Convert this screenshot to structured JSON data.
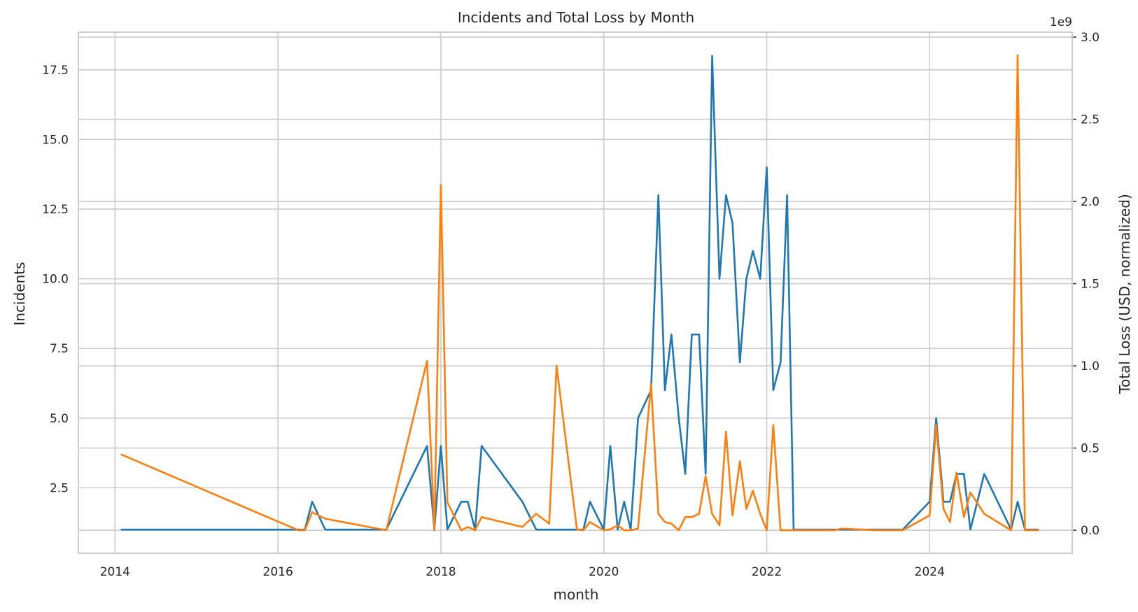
{
  "chart_data": {
    "type": "line",
    "title": "Incidents and Total Loss by Month",
    "xlabel": "month",
    "ylabel": "Incidents",
    "ylabel_right": "Total Loss (USD, normalized)",
    "right_offset_text": "1e9",
    "x_ticks": [
      "2014",
      "2016",
      "2018",
      "2020",
      "2022",
      "2024"
    ],
    "y_ticks_left": [
      "2.5",
      "5.0",
      "7.5",
      "10.0",
      "12.5",
      "15.0",
      "17.5"
    ],
    "y_ticks_right": [
      "0.0",
      "0.5",
      "1.0",
      "1.5",
      "2.0",
      "2.5",
      "3.0"
    ],
    "xlim": [
      2013.55,
      2025.75
    ],
    "ylim_left": [
      0.15,
      18.85
    ],
    "ylim_right": [
      -0.14,
      3.03
    ],
    "grid": true,
    "colors": {
      "incidents": "#1f77b4",
      "loss": "#ff7f0e",
      "grid": "#cccccc",
      "spine": "#cccccc",
      "text": "#262626"
    },
    "x": [
      2014.08,
      2016.25,
      2016.33,
      2016.42,
      2016.58,
      2017.33,
      2017.83,
      2017.92,
      2018.0,
      2018.08,
      2018.25,
      2018.33,
      2018.42,
      2018.5,
      2019.0,
      2019.17,
      2019.33,
      2019.42,
      2019.67,
      2019.75,
      2019.83,
      2020.0,
      2020.08,
      2020.17,
      2020.25,
      2020.33,
      2020.42,
      2020.58,
      2020.67,
      2020.75,
      2020.83,
      2020.92,
      2021.0,
      2021.08,
      2021.17,
      2021.25,
      2021.33,
      2021.42,
      2021.5,
      2021.58,
      2021.67,
      2021.75,
      2021.83,
      2021.92,
      2022.0,
      2022.08,
      2022.17,
      2022.25,
      2022.33,
      2022.83,
      2022.92,
      2023.33,
      2023.67,
      2024.0,
      2024.08,
      2024.17,
      2024.25,
      2024.33,
      2024.42,
      2024.5,
      2024.67,
      2025.0,
      2025.08,
      2025.17,
      2025.25,
      2025.33
    ],
    "series": [
      {
        "axis": "left",
        "values": [
          1,
          1,
          1,
          2,
          1,
          1,
          4,
          1,
          4,
          1,
          2,
          2,
          1,
          4,
          2,
          1,
          1,
          1,
          1,
          1,
          2,
          1,
          4,
          1,
          2,
          1,
          5,
          6,
          13,
          6,
          8,
          5,
          3,
          8,
          8,
          3,
          18,
          10,
          13,
          12,
          7,
          10,
          11,
          10,
          14,
          6,
          7,
          13,
          1,
          1,
          1,
          1,
          1,
          2,
          5,
          2,
          2,
          3,
          3,
          1,
          3,
          1,
          2,
          1,
          1,
          1
        ]
      },
      {
        "axis": "right",
        "values": [
          0.46,
          0.0,
          0.0,
          0.11,
          0.07,
          0.0,
          1.03,
          0.0,
          2.1,
          0.17,
          0.0,
          0.02,
          0.0,
          0.08,
          0.02,
          0.1,
          0.04,
          1.0,
          0.005,
          0.0,
          0.05,
          0.0,
          0.005,
          0.03,
          0.0,
          0.0,
          0.01,
          0.89,
          0.1,
          0.05,
          0.04,
          0.0,
          0.08,
          0.08,
          0.1,
          0.33,
          0.1,
          0.03,
          0.6,
          0.09,
          0.42,
          0.13,
          0.24,
          0.1,
          0.0,
          0.64,
          0.0,
          0.0,
          0.0,
          0.0,
          0.01,
          0.0,
          0.0,
          0.09,
          0.64,
          0.13,
          0.05,
          0.35,
          0.08,
          0.23,
          0.1,
          0.0,
          2.89,
          0.0,
          0.0,
          0.0
        ]
      }
    ]
  }
}
